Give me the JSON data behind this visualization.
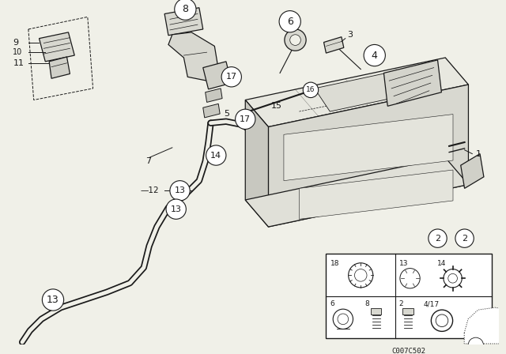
{
  "bg_color": "#f0f0e8",
  "line_color": "#1a1a1a",
  "diagram_code": "C007C502",
  "tank_color": "#e8e8e0",
  "tank_shade": "#d0d0c8",
  "white": "#ffffff"
}
